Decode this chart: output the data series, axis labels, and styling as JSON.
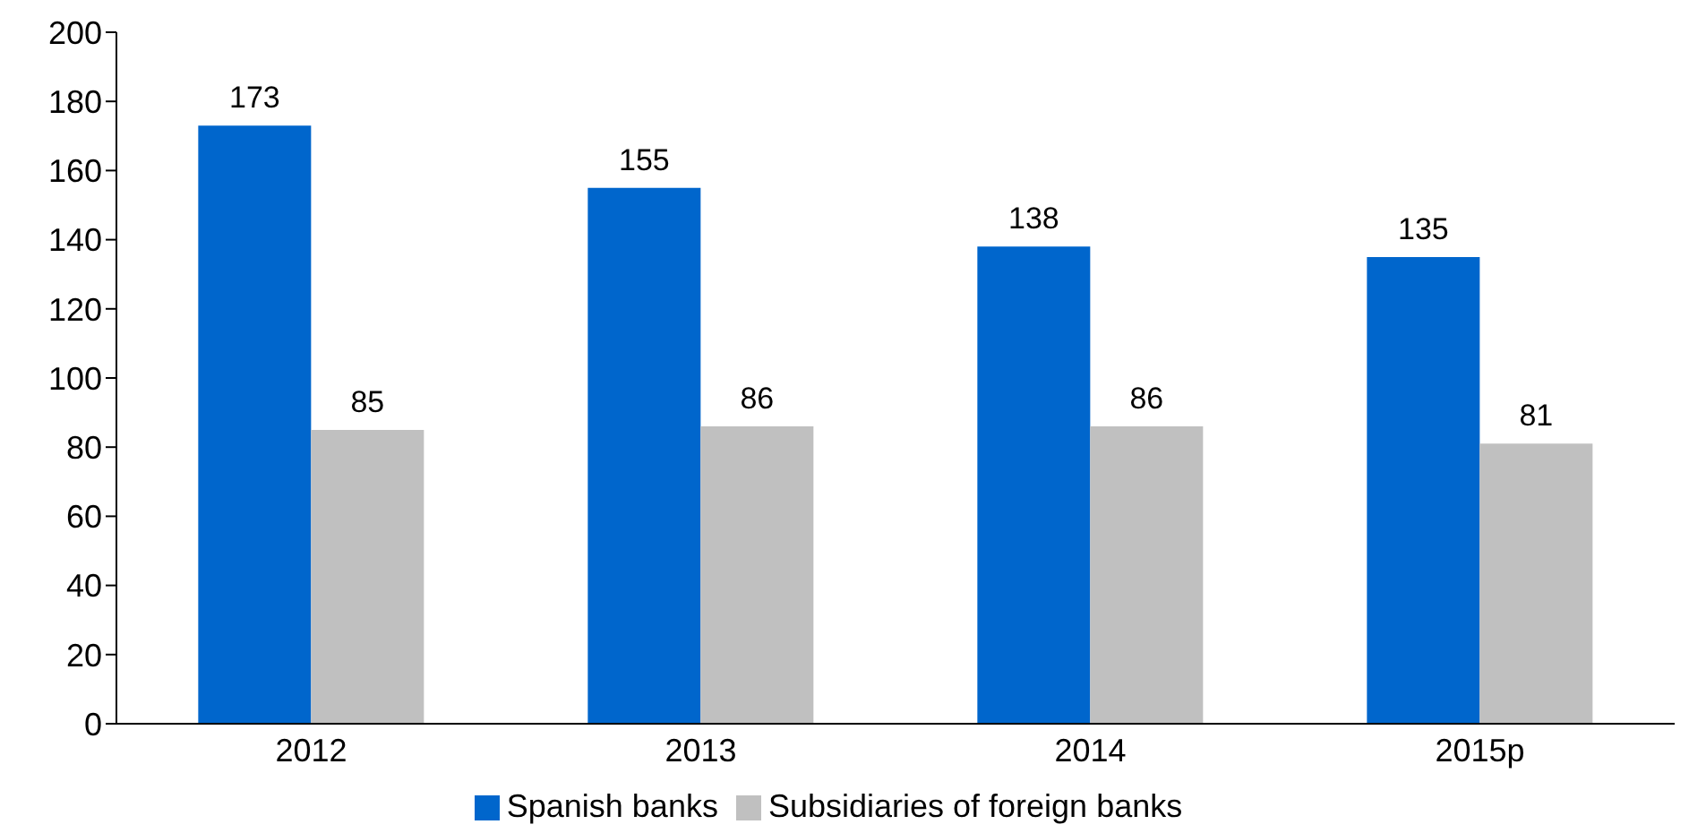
{
  "chart_data": {
    "type": "bar",
    "categories": [
      "2012",
      "2013",
      "2014",
      "2015p"
    ],
    "series": [
      {
        "name": "Spanish banks",
        "color": "#0066cc",
        "values": [
          173,
          155,
          138,
          135
        ]
      },
      {
        "name": "Subsidiaries of foreign banks",
        "color": "#c0c0c0",
        "values": [
          85,
          86,
          86,
          81
        ]
      }
    ],
    "ylim": [
      0,
      200
    ],
    "yticks": [
      0,
      20,
      40,
      60,
      80,
      100,
      120,
      140,
      160,
      180,
      200
    ],
    "data_labels": true,
    "legend": "bottom",
    "grid": false
  }
}
